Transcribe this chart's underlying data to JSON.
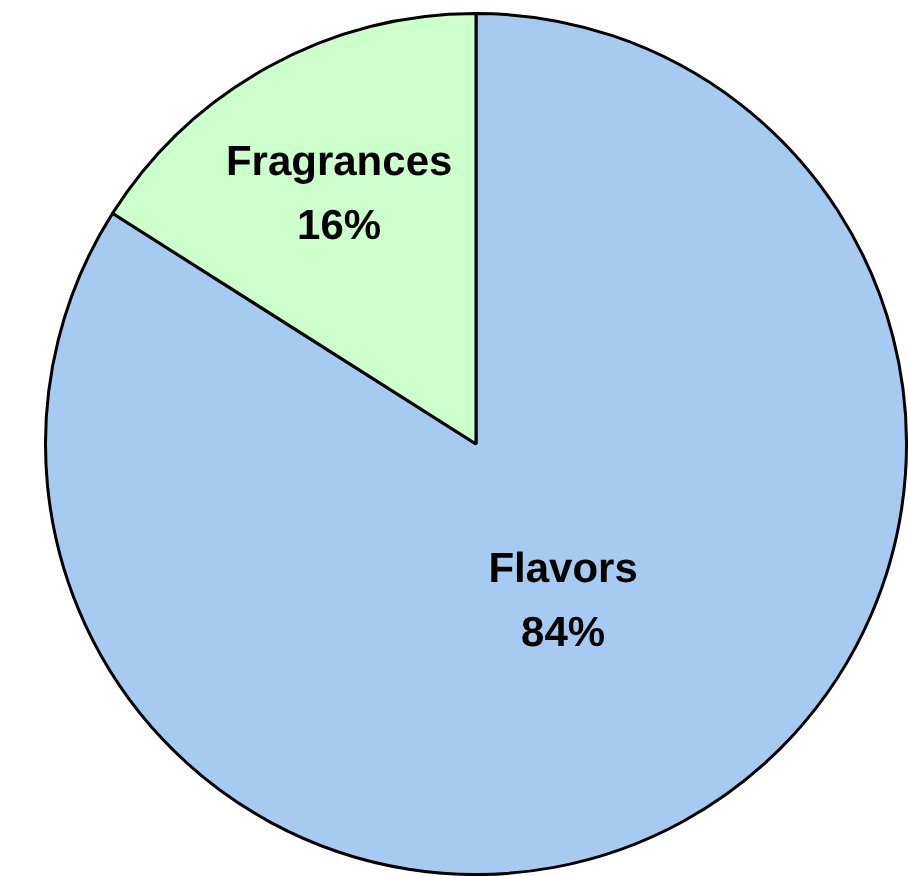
{
  "chart_data": {
    "type": "pie",
    "categories": [
      "Flavors",
      "Fragrances"
    ],
    "values": [
      84,
      16
    ],
    "colors": [
      "#a6caf0",
      "#ccffcc"
    ],
    "value_labels": [
      "84%",
      "16%"
    ]
  }
}
